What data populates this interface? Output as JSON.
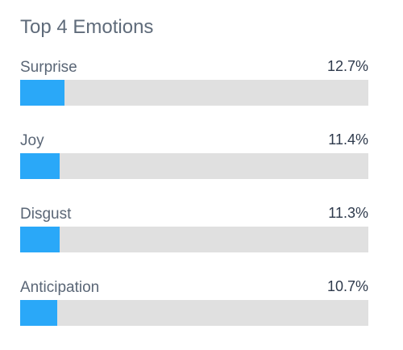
{
  "title": "Top 4 Emotions",
  "colors": {
    "bar_fill": "#2aa8f8",
    "track": "#e0e0e0",
    "title_text": "#5f6b7a",
    "label_text": "#5a6676",
    "value_text": "#2e3a4c"
  },
  "chart_data": {
    "type": "bar",
    "orientation": "horizontal",
    "title": "Top 4 Emotions",
    "categories": [
      "Surprise",
      "Joy",
      "Disgust",
      "Anticipation"
    ],
    "values": [
      12.7,
      11.4,
      11.3,
      10.7
    ],
    "value_labels": [
      "12.7%",
      "11.4%",
      "11.3%",
      "10.7%"
    ],
    "unit": "%",
    "xlim": [
      0,
      100
    ],
    "grid": false,
    "legend": "none"
  }
}
